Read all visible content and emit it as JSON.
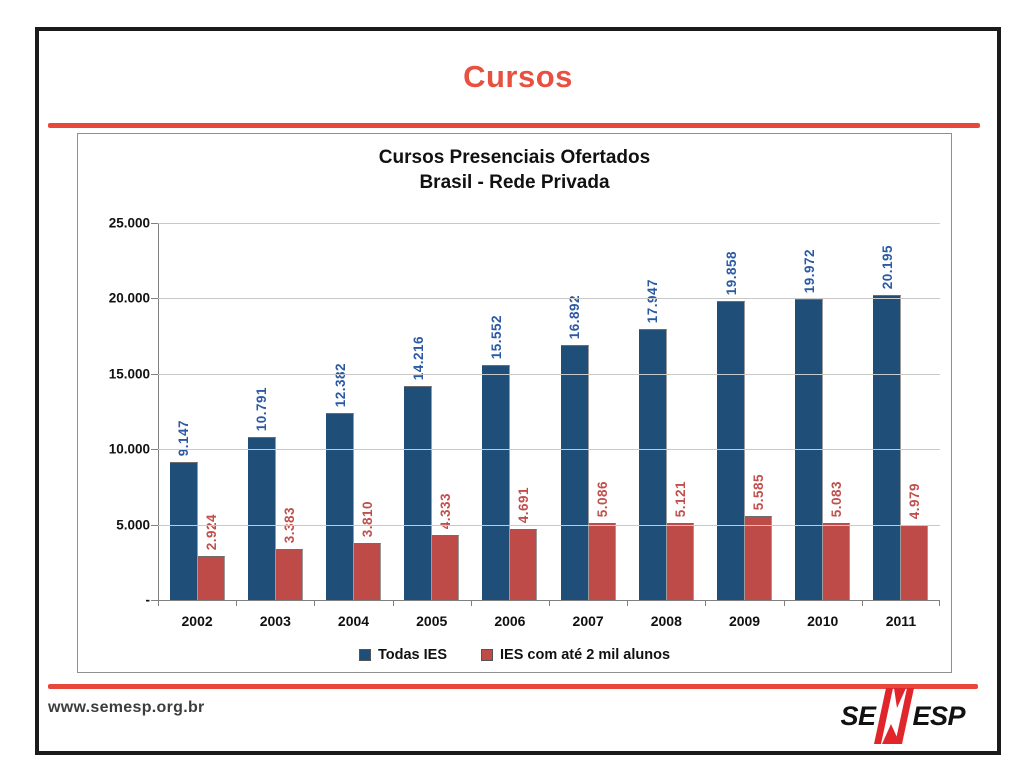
{
  "slide": {
    "title": "Cursos",
    "footer_url": "www.semesp.org.br",
    "logo": {
      "prefix": "SE",
      "suffix": "ESP"
    }
  },
  "colors": {
    "accent_red": "#E8473C",
    "bar_blue": "#1F4E79",
    "bar_red": "#BE4B48",
    "label_blue": "#2B5AA5",
    "label_red": "#C0504D"
  },
  "chart_data": {
    "type": "bar",
    "title": "Cursos Presenciais Ofertados",
    "subtitle": "Brasil - Rede Privada",
    "categories": [
      "2002",
      "2003",
      "2004",
      "2005",
      "2006",
      "2007",
      "2008",
      "2009",
      "2010",
      "2011"
    ],
    "series": [
      {
        "name": "Todas IES",
        "color": "#1F4E79",
        "label_color": "#2B5AA5",
        "values": [
          9147,
          10791,
          12382,
          14216,
          15552,
          16892,
          17947,
          19858,
          19972,
          20195
        ],
        "labels": [
          "9.147",
          "10.791",
          "12.382",
          "14.216",
          "15.552",
          "16.892",
          "17.947",
          "19.858",
          "19.972",
          "20.195"
        ]
      },
      {
        "name": "IES com até 2 mil alunos",
        "color": "#BE4B48",
        "label_color": "#C0504D",
        "values": [
          2924,
          3383,
          3810,
          4333,
          4691,
          5086,
          5121,
          5585,
          5083,
          4979
        ],
        "labels": [
          "2.924",
          "3.383",
          "3.810",
          "4.333",
          "4.691",
          "5.086",
          "5.121",
          "5.585",
          "5.083",
          "4.979"
        ]
      }
    ],
    "ylim": [
      0,
      25000
    ],
    "y_step": 5000,
    "y_tick_labels": [
      "25.000",
      "20.000",
      "15.000",
      "10.000",
      "5.000",
      "-"
    ],
    "grid": true,
    "legend_position": "bottom",
    "bar_label_rotation": 90
  }
}
